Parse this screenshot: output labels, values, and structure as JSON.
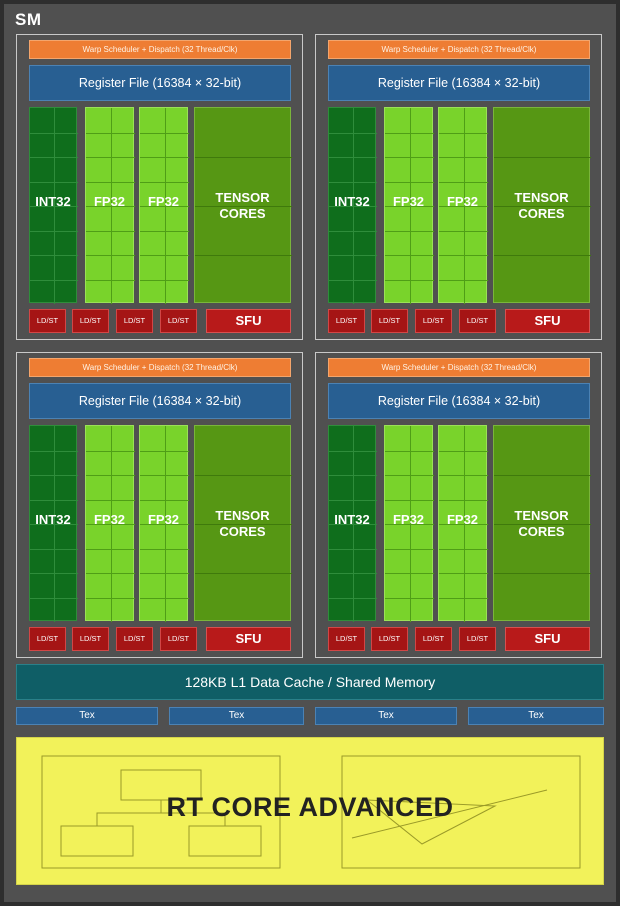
{
  "sm_label": "SM",
  "partitions": [
    {
      "warp_scheduler": "Warp Scheduler + Dispatch (32 Thread/Clk)",
      "register_file": "Register File (16384 × 32-bit)",
      "int_label": "INT32",
      "fp_labels": [
        "FP32",
        "FP32"
      ],
      "tensor_label_lines": [
        "TENSOR",
        "CORES"
      ],
      "ldst_labels": [
        "LD/ST",
        "LD/ST",
        "LD/ST",
        "LD/ST"
      ],
      "sfu_label": "SFU"
    },
    {
      "warp_scheduler": "Warp Scheduler + Dispatch (32 Thread/Clk)",
      "register_file": "Register File (16384 × 32-bit)",
      "int_label": "INT32",
      "fp_labels": [
        "FP32",
        "FP32"
      ],
      "tensor_label_lines": [
        "TENSOR",
        "CORES"
      ],
      "ldst_labels": [
        "LD/ST",
        "LD/ST",
        "LD/ST",
        "LD/ST"
      ],
      "sfu_label": "SFU"
    },
    {
      "warp_scheduler": "Warp Scheduler + Dispatch (32 Thread/Clk)",
      "register_file": "Register File (16384 × 32-bit)",
      "int_label": "INT32",
      "fp_labels": [
        "FP32",
        "FP32"
      ],
      "tensor_label_lines": [
        "TENSOR",
        "CORES"
      ],
      "ldst_labels": [
        "LD/ST",
        "LD/ST",
        "LD/ST",
        "LD/ST"
      ],
      "sfu_label": "SFU"
    },
    {
      "warp_scheduler": "Warp Scheduler + Dispatch (32 Thread/Clk)",
      "register_file": "Register File (16384 × 32-bit)",
      "int_label": "INT32",
      "fp_labels": [
        "FP32",
        "FP32"
      ],
      "tensor_label_lines": [
        "TENSOR",
        "CORES"
      ],
      "ldst_labels": [
        "LD/ST",
        "LD/ST",
        "LD/ST",
        "LD/ST"
      ],
      "sfu_label": "SFU"
    }
  ],
  "l1_cache": "128KB L1 Data Cache / Shared Memory",
  "tex_units": [
    "Tex",
    "Tex",
    "Tex",
    "Tex"
  ],
  "rt_core": "RT CORE ADVANCED",
  "colors": {
    "background": "#505050",
    "warp_scheduler": "#ee7d33",
    "register_file": "#285f92",
    "int32": "#0f6e1c",
    "fp32": "#79d32b",
    "tensor": "#569714",
    "ldst": "#a51515",
    "sfu": "#b81a1a",
    "l1_cache": "#0f5e66",
    "rt_core": "#f2f25a"
  }
}
